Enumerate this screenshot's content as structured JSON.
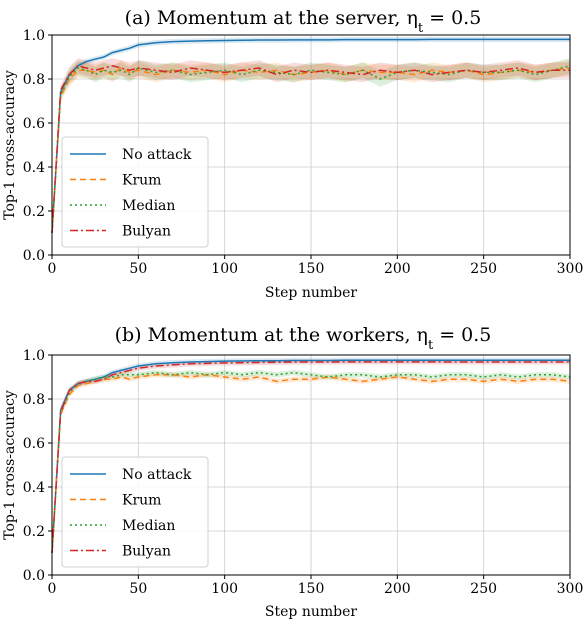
{
  "chart_data": [
    {
      "type": "line",
      "title": "(a) Momentum at the server, η",
      "title_sub": "t",
      "title_tail": " = 0.5",
      "xlabel": "Step number",
      "ylabel": "Top-1 cross-accuracy",
      "xlim": [
        0,
        300
      ],
      "ylim": [
        0.0,
        1.0
      ],
      "xticks": [
        "0",
        "50",
        "100",
        "150",
        "200",
        "250",
        "300"
      ],
      "yticks": [
        "0.0",
        "0.2",
        "0.4",
        "0.6",
        "0.8",
        "1.0"
      ],
      "grid": true,
      "legend_position": "lower-left",
      "x": [
        0,
        5,
        10,
        15,
        20,
        25,
        30,
        35,
        40,
        45,
        50,
        60,
        70,
        80,
        90,
        100,
        110,
        120,
        130,
        140,
        150,
        160,
        170,
        180,
        190,
        200,
        210,
        220,
        230,
        240,
        250,
        260,
        270,
        280,
        290,
        300
      ],
      "series": [
        {
          "name": "No attack",
          "color": "#1f77b4",
          "dash": "solid",
          "values": [
            0.1,
            0.74,
            0.82,
            0.86,
            0.88,
            0.89,
            0.9,
            0.92,
            0.93,
            0.94,
            0.955,
            0.965,
            0.97,
            0.972,
            0.974,
            0.975,
            0.976,
            0.977,
            0.977,
            0.978,
            0.978,
            0.978,
            0.979,
            0.979,
            0.979,
            0.979,
            0.979,
            0.98,
            0.98,
            0.98,
            0.98,
            0.98,
            0.98,
            0.98,
            0.98,
            0.98
          ]
        },
        {
          "name": "Krum",
          "color": "#ff7f0e",
          "dash": "6,4",
          "values": [
            0.1,
            0.72,
            0.8,
            0.84,
            0.84,
            0.83,
            0.84,
            0.82,
            0.85,
            0.83,
            0.84,
            0.82,
            0.84,
            0.83,
            0.84,
            0.82,
            0.84,
            0.83,
            0.84,
            0.82,
            0.83,
            0.84,
            0.82,
            0.84,
            0.83,
            0.83,
            0.82,
            0.84,
            0.83,
            0.84,
            0.82,
            0.83,
            0.84,
            0.83,
            0.84,
            0.85
          ]
        },
        {
          "name": "Median",
          "color": "#2ca02c",
          "dash": "2,3",
          "values": [
            0.1,
            0.73,
            0.81,
            0.85,
            0.84,
            0.82,
            0.84,
            0.83,
            0.84,
            0.82,
            0.85,
            0.83,
            0.84,
            0.82,
            0.83,
            0.84,
            0.82,
            0.84,
            0.83,
            0.82,
            0.84,
            0.83,
            0.82,
            0.84,
            0.8,
            0.83,
            0.84,
            0.83,
            0.82,
            0.84,
            0.83,
            0.83,
            0.84,
            0.82,
            0.84,
            0.86
          ]
        },
        {
          "name": "Bulyan",
          "color": "#d62728",
          "dash": "8,3,2,3",
          "values": [
            0.1,
            0.75,
            0.82,
            0.86,
            0.85,
            0.84,
            0.85,
            0.86,
            0.85,
            0.84,
            0.85,
            0.84,
            0.83,
            0.85,
            0.84,
            0.83,
            0.84,
            0.85,
            0.82,
            0.84,
            0.83,
            0.84,
            0.83,
            0.82,
            0.84,
            0.83,
            0.84,
            0.82,
            0.83,
            0.84,
            0.83,
            0.84,
            0.85,
            0.83,
            0.84,
            0.84
          ]
        }
      ]
    },
    {
      "type": "line",
      "title": "(b) Momentum at the workers, η",
      "title_sub": "t",
      "title_tail": " = 0.5",
      "xlabel": "Step number",
      "ylabel": "Top-1 cross-accuracy",
      "xlim": [
        0,
        300
      ],
      "ylim": [
        0.0,
        1.0
      ],
      "xticks": [
        "0",
        "50",
        "100",
        "150",
        "200",
        "250",
        "300"
      ],
      "yticks": [
        "0.0",
        "0.2",
        "0.4",
        "0.6",
        "0.8",
        "1.0"
      ],
      "grid": true,
      "legend_position": "lower-left",
      "x": [
        0,
        5,
        10,
        15,
        20,
        25,
        30,
        35,
        40,
        45,
        50,
        60,
        70,
        80,
        90,
        100,
        110,
        120,
        130,
        140,
        150,
        160,
        170,
        180,
        190,
        200,
        210,
        220,
        230,
        240,
        250,
        260,
        270,
        280,
        290,
        300
      ],
      "series": [
        {
          "name": "No attack",
          "color": "#1f77b4",
          "dash": "solid",
          "values": [
            0.1,
            0.75,
            0.84,
            0.87,
            0.88,
            0.89,
            0.9,
            0.92,
            0.93,
            0.94,
            0.95,
            0.96,
            0.965,
            0.968,
            0.97,
            0.972,
            0.973,
            0.974,
            0.974,
            0.975,
            0.975,
            0.975,
            0.976,
            0.976,
            0.976,
            0.976,
            0.976,
            0.976,
            0.976,
            0.976,
            0.976,
            0.976,
            0.976,
            0.976,
            0.976,
            0.976
          ]
        },
        {
          "name": "Krum",
          "color": "#ff7f0e",
          "dash": "6,4",
          "values": [
            0.1,
            0.73,
            0.82,
            0.86,
            0.87,
            0.88,
            0.89,
            0.89,
            0.9,
            0.89,
            0.9,
            0.91,
            0.91,
            0.9,
            0.91,
            0.9,
            0.89,
            0.9,
            0.88,
            0.89,
            0.89,
            0.9,
            0.89,
            0.88,
            0.89,
            0.9,
            0.89,
            0.88,
            0.89,
            0.89,
            0.88,
            0.89,
            0.88,
            0.89,
            0.89,
            0.88
          ]
        },
        {
          "name": "Median",
          "color": "#2ca02c",
          "dash": "2,3",
          "values": [
            0.1,
            0.74,
            0.83,
            0.87,
            0.88,
            0.89,
            0.9,
            0.9,
            0.91,
            0.91,
            0.91,
            0.92,
            0.91,
            0.92,
            0.91,
            0.92,
            0.91,
            0.92,
            0.91,
            0.92,
            0.91,
            0.9,
            0.91,
            0.91,
            0.9,
            0.91,
            0.91,
            0.9,
            0.91,
            0.91,
            0.9,
            0.91,
            0.9,
            0.91,
            0.91,
            0.9
          ]
        },
        {
          "name": "Bulyan",
          "color": "#d62728",
          "dash": "8,3,2,3",
          "values": [
            0.1,
            0.74,
            0.84,
            0.87,
            0.88,
            0.88,
            0.89,
            0.91,
            0.92,
            0.93,
            0.94,
            0.95,
            0.955,
            0.96,
            0.962,
            0.964,
            0.965,
            0.966,
            0.967,
            0.968,
            0.968,
            0.968,
            0.969,
            0.969,
            0.969,
            0.969,
            0.969,
            0.969,
            0.968,
            0.968,
            0.968,
            0.968,
            0.968,
            0.968,
            0.968,
            0.968
          ]
        }
      ]
    }
  ]
}
